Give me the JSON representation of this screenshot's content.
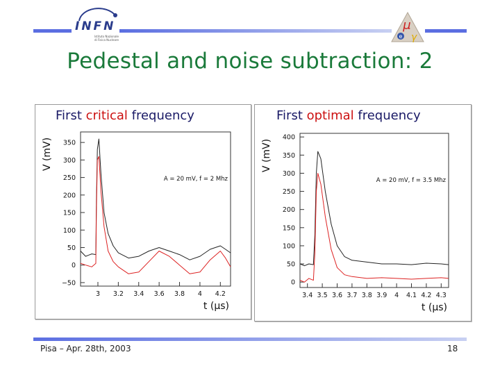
{
  "header": {
    "logo_text": "INFN",
    "logo_subtext": "Istituto Nazionale di Fisica Nucleare",
    "title": "Pedestal and noise subtraction: 2"
  },
  "colors": {
    "bar": "#5b6ee1",
    "title": "#1a7a3a",
    "caption": "#1a1a66",
    "highlight": "#cc1111",
    "series_black": "#222222",
    "series_red": "#dd2222"
  },
  "panels": [
    {
      "caption_pre": "First ",
      "caption_hl": "critical",
      "caption_post": " frequency"
    },
    {
      "caption_pre": "First ",
      "caption_hl": "optimal",
      "caption_post": " frequency"
    }
  ],
  "chart_data": [
    {
      "type": "line",
      "title": "",
      "xlabel": "t (µs)",
      "ylabel": "V (mV)",
      "annotation": "A = 20 mV, f = 2 Mhz",
      "xlim": [
        2.83,
        4.3
      ],
      "ylim": [
        -60,
        380
      ],
      "x_ticks": [
        3,
        3.2,
        3.4,
        3.6,
        3.8,
        4,
        4.2
      ],
      "y_ticks": [
        -50,
        0,
        50,
        100,
        150,
        200,
        250,
        300,
        350
      ],
      "grid": false,
      "series": [
        {
          "color": "#222222",
          "dashed": false,
          "points": [
            [
              2.83,
              40
            ],
            [
              2.88,
              25
            ],
            [
              2.94,
              32
            ],
            [
              2.98,
              30
            ],
            [
              2.985,
              180
            ],
            [
              2.995,
              330
            ],
            [
              3.01,
              360
            ],
            [
              3.03,
              260
            ],
            [
              3.06,
              150
            ],
            [
              3.1,
              90
            ],
            [
              3.15,
              55
            ],
            [
              3.2,
              35
            ],
            [
              3.3,
              20
            ],
            [
              3.4,
              25
            ],
            [
              3.5,
              40
            ],
            [
              3.6,
              50
            ],
            [
              3.7,
              40
            ],
            [
              3.8,
              30
            ],
            [
              3.9,
              15
            ],
            [
              4.0,
              25
            ],
            [
              4.1,
              45
            ],
            [
              4.2,
              55
            ],
            [
              4.25,
              45
            ],
            [
              4.3,
              35
            ]
          ]
        },
        {
          "color": "#dd2222",
          "dashed": false,
          "points": [
            [
              2.83,
              5
            ],
            [
              2.88,
              0
            ],
            [
              2.94,
              -5
            ],
            [
              2.98,
              5
            ],
            [
              2.985,
              150
            ],
            [
              2.995,
              300
            ],
            [
              3.01,
              310
            ],
            [
              3.03,
              210
            ],
            [
              3.06,
              110
            ],
            [
              3.1,
              40
            ],
            [
              3.15,
              10
            ],
            [
              3.2,
              -5
            ],
            [
              3.3,
              -25
            ],
            [
              3.4,
              -20
            ],
            [
              3.5,
              10
            ],
            [
              3.6,
              40
            ],
            [
              3.7,
              25
            ],
            [
              3.8,
              0
            ],
            [
              3.9,
              -25
            ],
            [
              4.0,
              -20
            ],
            [
              4.1,
              15
            ],
            [
              4.2,
              40
            ],
            [
              4.25,
              20
            ],
            [
              4.3,
              -5
            ]
          ]
        }
      ]
    },
    {
      "type": "line",
      "title": "",
      "xlabel": "t (µs)",
      "ylabel": "V (mV)",
      "annotation": "A = 20 mV, f = 3.5 Mhz",
      "xlim": [
        3.35,
        4.35
      ],
      "ylim": [
        -15,
        410
      ],
      "x_ticks": [
        3.4,
        3.5,
        3.6,
        3.7,
        3.8,
        3.9,
        4,
        4.1,
        4.2,
        4.3
      ],
      "y_ticks": [
        0,
        50,
        100,
        150,
        200,
        250,
        300,
        350,
        400
      ],
      "grid": false,
      "series": [
        {
          "color": "#222222",
          "dashed": false,
          "points": [
            [
              3.35,
              50
            ],
            [
              3.38,
              45
            ],
            [
              3.41,
              50
            ],
            [
              3.44,
              48
            ],
            [
              3.45,
              130
            ],
            [
              3.46,
              300
            ],
            [
              3.47,
              360
            ],
            [
              3.49,
              340
            ],
            [
              3.52,
              250
            ],
            [
              3.56,
              160
            ],
            [
              3.6,
              100
            ],
            [
              3.65,
              70
            ],
            [
              3.7,
              60
            ],
            [
              3.8,
              55
            ],
            [
              3.9,
              50
            ],
            [
              4.0,
              50
            ],
            [
              4.1,
              48
            ],
            [
              4.2,
              52
            ],
            [
              4.3,
              50
            ],
            [
              4.35,
              48
            ]
          ]
        },
        {
          "color": "#dd2222",
          "dashed": false,
          "points": [
            [
              3.35,
              5
            ],
            [
              3.38,
              0
            ],
            [
              3.41,
              10
            ],
            [
              3.44,
              5
            ],
            [
              3.45,
              80
            ],
            [
              3.46,
              250
            ],
            [
              3.47,
              300
            ],
            [
              3.49,
              270
            ],
            [
              3.52,
              180
            ],
            [
              3.56,
              90
            ],
            [
              3.6,
              40
            ],
            [
              3.65,
              20
            ],
            [
              3.7,
              15
            ],
            [
              3.8,
              10
            ],
            [
              3.9,
              12
            ],
            [
              4.0,
              10
            ],
            [
              4.1,
              8
            ],
            [
              4.2,
              10
            ],
            [
              4.3,
              12
            ],
            [
              4.35,
              10
            ]
          ]
        }
      ]
    }
  ],
  "footer": {
    "left": "Pisa – Apr. 28th, 2003",
    "page_number": "18"
  }
}
